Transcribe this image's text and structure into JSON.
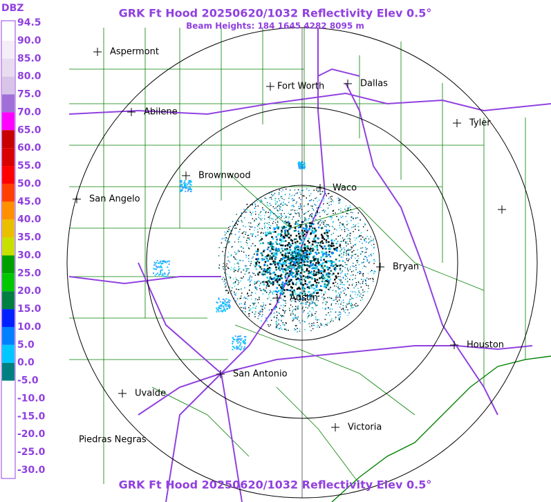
{
  "header": {
    "title": "GRK Ft Hood 20250620/1032 Reflectivity Elev 0.5°",
    "subtitle": "Beam Heights: 184 1645 4282 8095 m",
    "footer": "GRK Ft Hood 20250620/1032 Reflectivity Elev 0.5°"
  },
  "legend": {
    "title": "DBZ",
    "items": [
      {
        "label": "94.5",
        "color": "#ffffff"
      },
      {
        "label": "90.0",
        "color": "#f4eef8"
      },
      {
        "label": "85.0",
        "color": "#e8ddf0"
      },
      {
        "label": "80.0",
        "color": "#d8c4e8"
      },
      {
        "label": "75.0",
        "color": "#a070d8"
      },
      {
        "label": "70.0",
        "color": "#ff00ff"
      },
      {
        "label": "65.0",
        "color": "#c80000"
      },
      {
        "label": "60.0",
        "color": "#d80000"
      },
      {
        "label": "55.0",
        "color": "#ff0000"
      },
      {
        "label": "50.0",
        "color": "#ff4000"
      },
      {
        "label": "45.0",
        "color": "#ff9000"
      },
      {
        "label": "40.0",
        "color": "#e8c000"
      },
      {
        "label": "35.0",
        "color": "#c8e000"
      },
      {
        "label": "30.0",
        "color": "#00a000"
      },
      {
        "label": "25.0",
        "color": "#00c800"
      },
      {
        "label": "20.0",
        "color": "#008040"
      },
      {
        "label": "15.0",
        "color": "#0020ff"
      },
      {
        "label": "10.0",
        "color": "#0080ff"
      },
      {
        "label": "5.0",
        "color": "#00c8ff"
      },
      {
        "label": "0.0",
        "color": "#008080"
      },
      {
        "label": "-5.0",
        "color": "#ffffff"
      },
      {
        "label": "-10.0",
        "color": "#ffffff"
      },
      {
        "label": "-15.0",
        "color": "#ffffff"
      },
      {
        "label": "-20.0",
        "color": "#ffffff"
      },
      {
        "label": "-25.0",
        "color": "#ffffff"
      },
      {
        "label": "-30.0",
        "color": "#ffffff"
      }
    ]
  },
  "cities": [
    {
      "name": "Aspermont"
    },
    {
      "name": "Fort Worth"
    },
    {
      "name": "Dallas"
    },
    {
      "name": "Abilene"
    },
    {
      "name": "Tyler"
    },
    {
      "name": "Brownwood"
    },
    {
      "name": "Waco"
    },
    {
      "name": "San Angelo"
    },
    {
      "name": "Bryan"
    },
    {
      "name": "Austin"
    },
    {
      "name": "Houston"
    },
    {
      "name": "San Antonio"
    },
    {
      "name": "Uvalde"
    },
    {
      "name": "Victoria"
    },
    {
      "name": "Piedras Negras"
    }
  ]
}
